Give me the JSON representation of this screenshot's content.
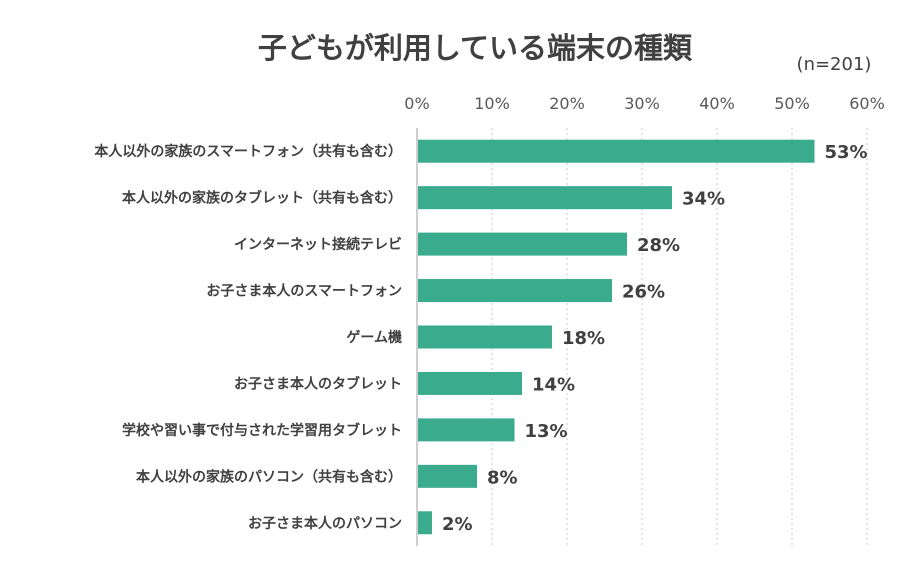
{
  "chart_data": {
    "type": "bar",
    "orientation": "horizontal",
    "title": "子どもが利用している端末の種類",
    "note": "(n=201)",
    "categories": [
      "本人以外の家族のスマートフォン（共有も含む）",
      "本人以外の家族のタブレット（共有も含む）",
      "インターネット接続テレビ",
      "お子さま本人のスマートフォン",
      "ゲーム機",
      "お子さま本人のタブレット",
      "学校や習い事で付与された学習用タブレット",
      "本人以外の家族のパソコン（共有も含む）",
      "お子さま本人のパソコン"
    ],
    "values": [
      53,
      34,
      28,
      26,
      18,
      14,
      13,
      8,
      2
    ],
    "value_labels": [
      "53%",
      "34%",
      "28%",
      "26%",
      "18%",
      "14%",
      "13%",
      "8%",
      "2%"
    ],
    "xlim": [
      0,
      60
    ],
    "xticks": [
      0,
      10,
      20,
      30,
      40,
      50,
      60
    ],
    "xtick_labels": [
      "0%",
      "10%",
      "20%",
      "30%",
      "40%",
      "50%",
      "60%"
    ],
    "xaxis_position": "top",
    "grid": "vertical dotted",
    "bar_color": "#3aab8c"
  }
}
